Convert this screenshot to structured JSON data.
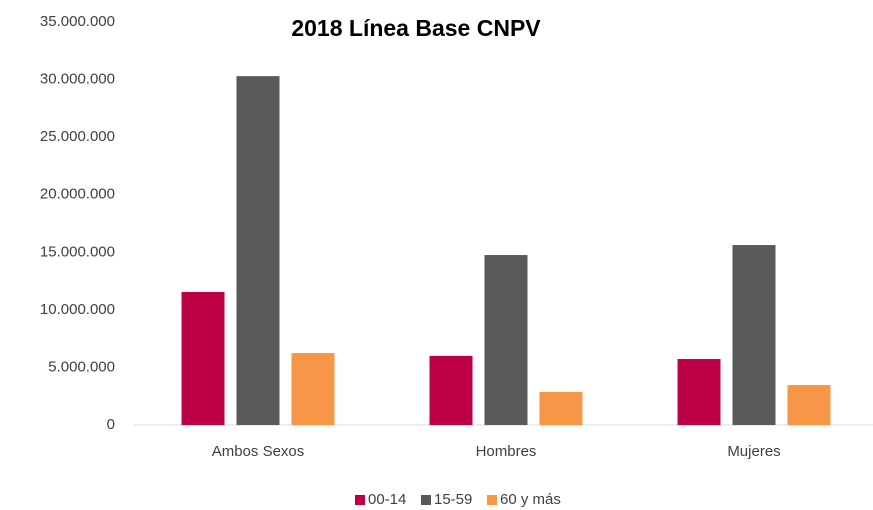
{
  "chart_data": {
    "type": "bar",
    "title": "2018 Línea Base CNPV",
    "categories": [
      "Ambos Sexos",
      "Hombres",
      "Mujeres"
    ],
    "series": [
      {
        "name": "00-14",
        "color": "#be0046",
        "values": [
          11550000,
          6000000,
          5730000
        ]
      },
      {
        "name": "15-59",
        "color": "#595959",
        "values": [
          30300000,
          14760000,
          15630000
        ]
      },
      {
        "name": "60 y más",
        "color": "#f79646",
        "values": [
          6250000,
          2870000,
          3470000
        ]
      }
    ],
    "ylim": [
      0,
      35000000
    ],
    "yticks": [
      {
        "value": 0,
        "label": "0"
      },
      {
        "value": 5000000,
        "label": "5.000.000"
      },
      {
        "value": 10000000,
        "label": "10.000.000"
      },
      {
        "value": 15000000,
        "label": "15.000.000"
      },
      {
        "value": 20000000,
        "label": "20.000.000"
      },
      {
        "value": 25000000,
        "label": "25.000.000"
      },
      {
        "value": 30000000,
        "label": "30.000.000"
      },
      {
        "value": 35000000,
        "label": "35.000.000"
      }
    ],
    "grid": false,
    "legend": "bottom"
  }
}
